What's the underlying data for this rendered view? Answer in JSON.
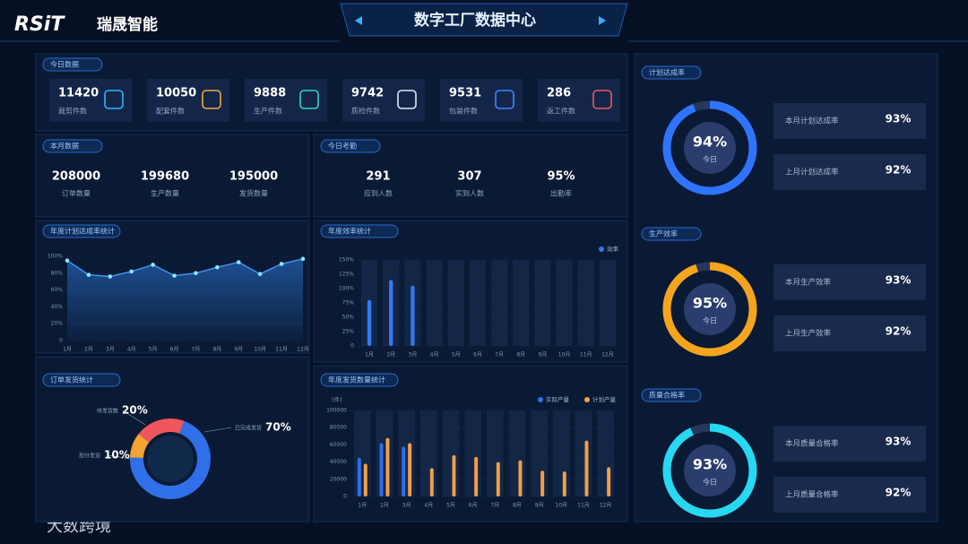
{
  "header": {
    "logo": "RSiT",
    "brand": "瑞晟智能",
    "title": "数字工厂数据中心"
  },
  "today": {
    "title": "今日数据",
    "items": [
      {
        "value": 11420,
        "label": "裁剪件数"
      },
      {
        "value": 10050,
        "label": "配套件数"
      },
      {
        "value": 9888,
        "label": "生产件数"
      },
      {
        "value": 9742,
        "label": "质检件数"
      },
      {
        "value": 9531,
        "label": "包装件数"
      },
      {
        "value": 286,
        "label": "返工件数"
      }
    ]
  },
  "month": {
    "title": "本月数据",
    "items": [
      {
        "value": 208000,
        "label": "订单数量"
      },
      {
        "value": 199680,
        "label": "生产数量"
      },
      {
        "value": 195000,
        "label": "发货数量"
      }
    ]
  },
  "attendance": {
    "title": "今日考勤",
    "items": [
      {
        "value": "291",
        "label": "应到人数"
      },
      {
        "value": "307",
        "label": "实到人数"
      },
      {
        "value": "95%",
        "label": "出勤率"
      }
    ]
  },
  "chart_data": [
    {
      "type": "line",
      "title": "年度计划达成率统计",
      "color": "#3f93ee",
      "categories": [
        "1月",
        "2月",
        "3月",
        "4月",
        "5月",
        "6月",
        "7月",
        "8月",
        "9月",
        "10月",
        "11月",
        "12月"
      ],
      "values": [
        95,
        78,
        76,
        82,
        90,
        77,
        80,
        87,
        93,
        79,
        91,
        97
      ],
      "ylim": [
        0,
        100
      ],
      "yticks": [
        0,
        {
          "value": 20,
          "label": "20%"
        },
        {
          "value": 40,
          "label": "40%"
        },
        {
          "value": 60,
          "label": "60%"
        },
        {
          "value": 80,
          "label": "80%"
        },
        {
          "value": 100,
          "label": "100%"
        }
      ],
      "grid": true
    },
    {
      "type": "bar",
      "title": "年度效率统计",
      "categories": [
        "1月",
        "2月",
        "3月",
        "4月",
        "5月",
        "6月",
        "7月",
        "8月",
        "9月",
        "10月",
        "11月",
        "12月"
      ],
      "series": [
        {
          "name": "效率",
          "color": "#3578f0",
          "values": [
            80,
            115,
            105,
            null,
            null,
            null,
            null,
            null,
            null,
            null,
            null,
            null
          ]
        }
      ],
      "ylim": [
        0,
        150
      ],
      "yticks": [
        0,
        {
          "value": 25,
          "label": "25%"
        },
        {
          "value": 50,
          "label": "50%"
        },
        {
          "value": 75,
          "label": "75%"
        },
        {
          "value": 100,
          "label": "100%"
        },
        {
          "value": 125,
          "label": "125%"
        },
        {
          "value": 150,
          "label": "150%"
        }
      ],
      "grid": true,
      "legend": "top-right"
    },
    {
      "type": "pie",
      "title": "订单发货统计",
      "categories": [
        "已完成发货",
        "部分发货",
        "待发货数"
      ],
      "values": [
        70,
        10,
        20
      ],
      "value_labels": [
        "70%",
        "10%",
        "20%"
      ],
      "colors": [
        "#2f6fe8",
        "#f5a330",
        "#f0565e"
      ]
    },
    {
      "type": "bar",
      "title": "年度发货数量统计",
      "y_label": "(件)",
      "categories": [
        "1月",
        "2月",
        "3月",
        "4月",
        "5月",
        "6月",
        "7月",
        "8月",
        "9月",
        "10月",
        "11月",
        "12月"
      ],
      "series": [
        {
          "name": "实际产量",
          "color": "#2f6fe8",
          "values": [
            45000,
            62000,
            58000,
            null,
            null,
            null,
            null,
            null,
            null,
            null,
            null,
            null
          ]
        },
        {
          "name": "计划产量",
          "color": "#f0a04b",
          "values": [
            38000,
            68000,
            62000,
            33000,
            48000,
            46000,
            40000,
            42000,
            30000,
            29000,
            65000,
            34000
          ]
        }
      ],
      "ylim": [
        0,
        100000
      ],
      "yticks": [
        0,
        20000,
        40000,
        60000,
        80000,
        100000
      ],
      "grid": true,
      "legend": "top-right"
    }
  ],
  "rates": [
    {
      "title": "计划达成率",
      "value": 94,
      "value_label": "94%",
      "sub": "今日",
      "color": "#2f74ff",
      "rows": [
        {
          "label": "本月计划达成率",
          "value": "93%"
        },
        {
          "label": "上月计划达成率",
          "value": "92%"
        }
      ]
    },
    {
      "title": "生产效率",
      "value": 95,
      "value_label": "95%",
      "sub": "今日",
      "color": "#f5a41d",
      "rows": [
        {
          "label": "本月生产效率",
          "value": "93%"
        },
        {
          "label": "上月生产效率",
          "value": "92%"
        }
      ]
    },
    {
      "title": "质量合格率",
      "value": 93,
      "value_label": "93%",
      "sub": "今日",
      "color": "#27d8f2",
      "rows": [
        {
          "label": "本月质量合格率",
          "value": "93%"
        },
        {
          "label": "上月质量合格率",
          "value": "92%"
        }
      ]
    }
  ],
  "watermark": "大数跨境"
}
